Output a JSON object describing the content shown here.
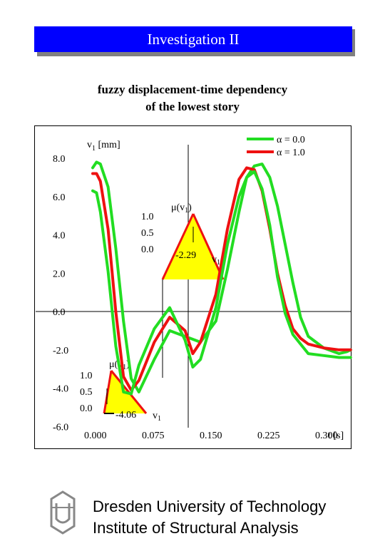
{
  "header": {
    "title": "Investigation II"
  },
  "subtitle": {
    "line1": "fuzzy displacement-time dependency",
    "line2": "of the lowest story"
  },
  "footer": {
    "line1": "Dresden University of Technology",
    "line2": "Institute of Structural Analysis"
  },
  "colors": {
    "alpha0": "#22dd22",
    "alpha1": "#ee1111",
    "fill": "#ffff00",
    "title_bar": "#0000ff"
  },
  "chart_data": {
    "type": "line",
    "ylabel": "v1 [mm]",
    "xlabel": "t [s]",
    "xlim": [
      0.0,
      0.35
    ],
    "ylim": [
      -6.5,
      9.0
    ],
    "x_ticks": [
      "0.000",
      "0.075",
      "0.150",
      "0.225",
      "0.300"
    ],
    "y_ticks": [
      "8.0",
      "6.0",
      "4.0",
      "2.0",
      "0.0",
      "-2.0",
      "-4.0",
      "-6.0"
    ],
    "legend": {
      "position": "top-right",
      "entries": [
        {
          "label": "α = 0.0",
          "color": "#22dd22"
        },
        {
          "label": "α = 1.0",
          "color": "#ee1111"
        }
      ]
    },
    "series": [
      {
        "name": "α = 0.0 (upper)",
        "color": "#22dd22",
        "x": [
          0.0,
          0.005,
          0.01,
          0.02,
          0.03,
          0.04,
          0.05,
          0.06,
          0.08,
          0.1,
          0.12,
          0.14,
          0.16,
          0.175,
          0.19,
          0.2,
          0.21,
          0.22,
          0.23,
          0.24,
          0.25,
          0.26,
          0.27,
          0.28,
          0.3,
          0.32,
          0.33,
          0.335
        ],
        "y": [
          7.5,
          7.8,
          7.7,
          6.5,
          3.3,
          -0.5,
          -3.5,
          -4.2,
          -2.5,
          -1.0,
          -1.3,
          -1.6,
          -0.5,
          2.2,
          5.2,
          7.0,
          7.6,
          7.7,
          7.0,
          5.5,
          3.5,
          1.5,
          -0.3,
          -1.3,
          -1.9,
          -2.2,
          -2.1,
          -2.0
        ]
      },
      {
        "name": "α = 1.0",
        "color": "#ee1111",
        "x": [
          0.0,
          0.005,
          0.01,
          0.02,
          0.03,
          0.04,
          0.05,
          0.06,
          0.08,
          0.1,
          0.12,
          0.13,
          0.14,
          0.16,
          0.175,
          0.19,
          0.2,
          0.21,
          0.22,
          0.23,
          0.24,
          0.25,
          0.26,
          0.27,
          0.28,
          0.3,
          0.32,
          0.33,
          0.335
        ],
        "y": [
          7.2,
          7.2,
          6.8,
          4.3,
          0.0,
          -3.4,
          -4.1,
          -3.6,
          -1.6,
          -0.3,
          -1.0,
          -2.2,
          -1.6,
          0.9,
          4.3,
          6.9,
          7.5,
          7.4,
          6.3,
          4.3,
          2.0,
          0.3,
          -0.9,
          -1.4,
          -1.7,
          -1.9,
          -2.0,
          -2.0,
          -2.0
        ]
      },
      {
        "name": "α = 0.0 (lower)",
        "color": "#22dd22",
        "x": [
          0.0,
          0.005,
          0.01,
          0.02,
          0.03,
          0.04,
          0.05,
          0.06,
          0.08,
          0.1,
          0.12,
          0.13,
          0.14,
          0.16,
          0.175,
          0.19,
          0.2,
          0.21,
          0.22,
          0.23,
          0.24,
          0.25,
          0.26,
          0.27,
          0.28,
          0.3,
          0.32,
          0.33,
          0.335
        ],
        "y": [
          6.3,
          6.2,
          5.2,
          2.1,
          -1.8,
          -4.2,
          -4.3,
          -2.8,
          -0.9,
          0.2,
          -1.5,
          -2.9,
          -2.5,
          0.2,
          3.5,
          6.0,
          7.0,
          7.3,
          6.4,
          4.5,
          1.8,
          -0.1,
          -1.2,
          -1.7,
          -2.2,
          -2.3,
          -2.4,
          -2.4,
          -2.4
        ]
      }
    ],
    "inset_upper": {
      "label": "μ(v1)",
      "axis_label": "v1",
      "center_label": "-2.29",
      "levels": [
        "1.0",
        "0.5",
        "0.0"
      ]
    },
    "inset_lower": {
      "label": "μ(v1)",
      "axis_label": "v1",
      "center_label": "-4.06",
      "levels": [
        "1.0",
        "0.5",
        "0.0"
      ]
    }
  }
}
